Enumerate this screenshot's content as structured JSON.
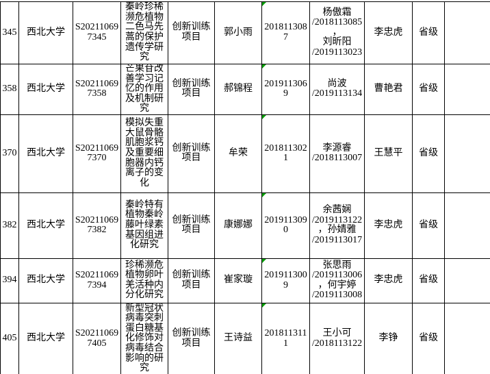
{
  "table": {
    "columns": [
      "num",
      "school",
      "project_id",
      "title",
      "type",
      "leader",
      "student_id",
      "members",
      "advisor",
      "level",
      "extra"
    ],
    "rows": [
      {
        "num": "345",
        "school": "西北大学",
        "project_id": "S20211069\n7345",
        "title": "秦岭珍稀濒危植物二色马先蒿的保护遗传学研究",
        "type": "创新训练项目",
        "leader": "郭小雨",
        "student_id": "201811308\n7",
        "members": "杨傲霜\n/2018113085\n，\n刘昕阳\n/2019113023",
        "advisor": "李忠虎",
        "level": "省级",
        "extra": ""
      },
      {
        "num": "358",
        "school": "西北大学",
        "project_id": "S20211069\n7358",
        "title": "芒果苷改善学习记忆的作用及机制研究",
        "type": "创新训练项目",
        "leader": "郝锦程",
        "student_id": "201911306\n9",
        "members": "尚波\n/2019113134",
        "advisor": "曹艳君",
        "level": "省级",
        "extra": ""
      },
      {
        "num": "370",
        "school": "西北大学",
        "project_id": "S20211069\n7370",
        "title": "模拟失重大鼠骨骼肌胞浆钙及重要细胞器内钙离子的变化",
        "type": "创新训练项目",
        "leader": "牟荣",
        "student_id": "201811302\n1",
        "members": "李源睿\n/2018113007",
        "advisor": "王慧平",
        "level": "省级",
        "extra": ""
      },
      {
        "num": "382",
        "school": "西北大学",
        "project_id": "S20211069\n7382",
        "title": "秦岭特有植物秦岭藤叶绿素基因组进化研究",
        "type": "创新训练项目",
        "leader": "康娜娜",
        "student_id": "201911309\n0",
        "members": "余茜娴\n/2019113122\n，孙婧雅\n/2019113017",
        "advisor": "李忠虎",
        "level": "省级",
        "extra": ""
      },
      {
        "num": "394",
        "school": "西北大学",
        "project_id": "S20211069\n7394",
        "title": "珍稀濒危植物卵叶羌活种内分化研究",
        "type": "创新训练项目",
        "leader": "崔家璇",
        "student_id": "201911300\n9",
        "members": "张思雨\n/2019113006\n，何宇婷\n/2019113008",
        "advisor": "李忠虎",
        "level": "省级",
        "extra": ""
      },
      {
        "num": "405",
        "school": "西北大学",
        "project_id": "S20211069\n7405",
        "title": "新型冠状病毒突刺蛋白糖基化修饰对病毒结合影响的研究",
        "type": "创新训练项目",
        "leader": "王诗益",
        "student_id": "201811311\n1",
        "members": "王小可\n/2018113122",
        "advisor": "李铮",
        "level": "省级",
        "extra": ""
      }
    ]
  },
  "colors": {
    "grid_line": "#000000",
    "error_indicator": "#00A000",
    "background": "#ffffff",
    "text": "#000000"
  }
}
